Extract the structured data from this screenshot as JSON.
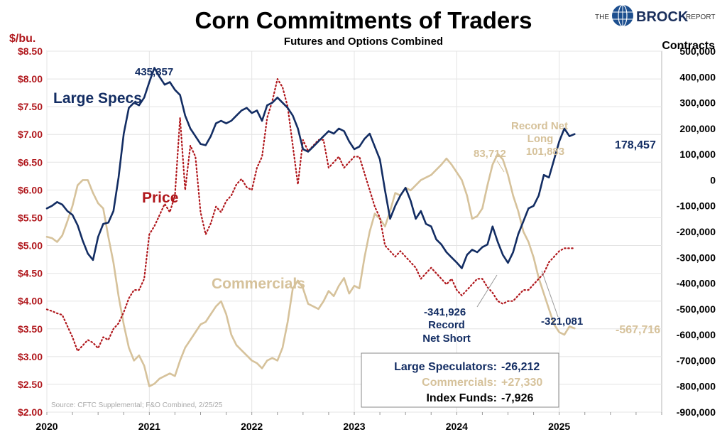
{
  "header": {
    "title": "Corn Commitments of Traders",
    "subtitle": "Futures and Options Combined",
    "logo": {
      "the": "THE",
      "brand": "BROCK",
      "report": "REPORT"
    }
  },
  "colors": {
    "navy": "#132d63",
    "tan": "#d6c29b",
    "red": "#b0171c",
    "grid": "#e4e4e4",
    "source": "#a8a8a8"
  },
  "chart_data": {
    "type": "line",
    "title": "Corn Commitments of Traders",
    "subtitle": "Futures and Options Combined",
    "left_axis": {
      "label": "$/bu.",
      "range": [
        2.0,
        8.5
      ],
      "ticks": [
        "$2.00",
        "$2.50",
        "$3.00",
        "$3.50",
        "$4.00",
        "$4.50",
        "$5.00",
        "$5.50",
        "$6.00",
        "$6.50",
        "$7.00",
        "$7.50",
        "$8.00",
        "$8.50"
      ]
    },
    "right_axis": {
      "label": "Contracts",
      "range": [
        -900000,
        500000
      ],
      "ticks": [
        "-900,000",
        "-800,000",
        "-700,000",
        "-600,000",
        "-500,000",
        "-400,000",
        "-300,000",
        "-200,000",
        "-100,000",
        "0",
        "100,000",
        "200,000",
        "300,000",
        "400,000",
        "500,000"
      ]
    },
    "x_axis": {
      "range": [
        2020.0,
        2026.0
      ],
      "ticks": [
        {
          "x": 2020,
          "label": "2020"
        },
        {
          "x": 2021,
          "label": "2021"
        },
        {
          "x": 2022,
          "label": "2022"
        },
        {
          "x": 2023,
          "label": "2023"
        },
        {
          "x": 2024,
          "label": "2024"
        },
        {
          "x": 2025,
          "label": "2025"
        }
      ]
    },
    "grid": true,
    "series": [
      {
        "name": "Large Specs",
        "axis": "right",
        "style": "solid",
        "colorKey": "navy",
        "x": [
          2020.0,
          2020.05,
          2020.1,
          2020.15,
          2020.2,
          2020.25,
          2020.3,
          2020.35,
          2020.4,
          2020.45,
          2020.5,
          2020.55,
          2020.6,
          2020.65,
          2020.7,
          2020.75,
          2020.8,
          2020.85,
          2020.9,
          2020.95,
          2021.0,
          2021.05,
          2021.1,
          2021.15,
          2021.2,
          2021.25,
          2021.3,
          2021.35,
          2021.4,
          2021.45,
          2021.5,
          2021.55,
          2021.6,
          2021.65,
          2021.7,
          2021.75,
          2021.8,
          2021.85,
          2021.9,
          2021.95,
          2022.0,
          2022.05,
          2022.1,
          2022.15,
          2022.2,
          2022.25,
          2022.3,
          2022.35,
          2022.4,
          2022.45,
          2022.5,
          2022.55,
          2022.6,
          2022.65,
          2022.7,
          2022.75,
          2022.8,
          2022.85,
          2022.9,
          2022.95,
          2023.0,
          2023.05,
          2023.1,
          2023.15,
          2023.2,
          2023.25,
          2023.3,
          2023.35,
          2023.4,
          2023.45,
          2023.5,
          2023.55,
          2023.6,
          2023.65,
          2023.7,
          2023.75,
          2023.8,
          2023.85,
          2023.9,
          2023.95,
          2024.0,
          2024.05,
          2024.1,
          2024.15,
          2024.2,
          2024.25,
          2024.3,
          2024.35,
          2024.4,
          2024.45,
          2024.5,
          2024.55,
          2024.6,
          2024.65,
          2024.7,
          2024.75,
          2024.8,
          2024.85,
          2024.9,
          2024.95,
          2025.0,
          2025.05,
          2025.1,
          2025.15
        ],
        "y": [
          -110000,
          -100000,
          -85000,
          -95000,
          -120000,
          -135000,
          -175000,
          -235000,
          -285000,
          -310000,
          -220000,
          -170000,
          -165000,
          -120000,
          10000,
          180000,
          280000,
          300000,
          290000,
          320000,
          380000,
          435357,
          400000,
          370000,
          380000,
          350000,
          330000,
          250000,
          200000,
          170000,
          140000,
          135000,
          170000,
          220000,
          230000,
          220000,
          230000,
          250000,
          270000,
          280000,
          260000,
          270000,
          230000,
          290000,
          300000,
          320000,
          300000,
          280000,
          250000,
          200000,
          120000,
          110000,
          130000,
          150000,
          170000,
          190000,
          180000,
          200000,
          190000,
          150000,
          120000,
          130000,
          160000,
          180000,
          130000,
          80000,
          -40000,
          -150000,
          -100000,
          -60000,
          -30000,
          -80000,
          -150000,
          -120000,
          -170000,
          -180000,
          -230000,
          -250000,
          -280000,
          -300000,
          -320000,
          -341926,
          -290000,
          -270000,
          -280000,
          -260000,
          -250000,
          -180000,
          -240000,
          -290000,
          -321081,
          -280000,
          -210000,
          -160000,
          -110000,
          -100000,
          -60000,
          20000,
          10000,
          80000,
          150000,
          200000,
          170000,
          178457
        ]
      },
      {
        "name": "Commercials",
        "axis": "right",
        "style": "solid",
        "colorKey": "tan",
        "x": [
          2020.0,
          2020.05,
          2020.1,
          2020.15,
          2020.2,
          2020.25,
          2020.3,
          2020.35,
          2020.4,
          2020.45,
          2020.5,
          2020.55,
          2020.6,
          2020.65,
          2020.7,
          2020.75,
          2020.8,
          2020.85,
          2020.9,
          2020.95,
          2021.0,
          2021.05,
          2021.1,
          2021.15,
          2021.2,
          2021.25,
          2021.3,
          2021.35,
          2021.4,
          2021.45,
          2021.5,
          2021.55,
          2021.6,
          2021.65,
          2021.7,
          2021.75,
          2021.8,
          2021.85,
          2021.9,
          2021.95,
          2022.0,
          2022.05,
          2022.1,
          2022.15,
          2022.2,
          2022.25,
          2022.3,
          2022.35,
          2022.4,
          2022.45,
          2022.5,
          2022.55,
          2022.6,
          2022.65,
          2022.7,
          2022.75,
          2022.8,
          2022.85,
          2022.9,
          2022.95,
          2023.0,
          2023.05,
          2023.1,
          2023.15,
          2023.2,
          2023.25,
          2023.3,
          2023.35,
          2023.4,
          2023.45,
          2023.5,
          2023.55,
          2023.6,
          2023.65,
          2023.7,
          2023.75,
          2023.8,
          2023.85,
          2023.9,
          2023.95,
          2024.0,
          2024.05,
          2024.1,
          2024.15,
          2024.2,
          2024.25,
          2024.3,
          2024.35,
          2024.4,
          2024.45,
          2024.5,
          2024.55,
          2024.6,
          2024.65,
          2024.7,
          2024.75,
          2024.8,
          2024.85,
          2024.9,
          2024.95,
          2025.0,
          2025.05,
          2025.1,
          2025.15
        ],
        "y": [
          -220000,
          -225000,
          -240000,
          -215000,
          -160000,
          -100000,
          -20000,
          0,
          0,
          -50000,
          -90000,
          -110000,
          -220000,
          -320000,
          -450000,
          -560000,
          -650000,
          -700000,
          -680000,
          -720000,
          -800000,
          -790000,
          -770000,
          -760000,
          -750000,
          -760000,
          -700000,
          -650000,
          -620000,
          -590000,
          -560000,
          -550000,
          -520000,
          -490000,
          -470000,
          -520000,
          -600000,
          -640000,
          -660000,
          -680000,
          -700000,
          -710000,
          -730000,
          -700000,
          -690000,
          -700000,
          -650000,
          -550000,
          -420000,
          -390000,
          -420000,
          -480000,
          -490000,
          -500000,
          -470000,
          -430000,
          -450000,
          -410000,
          -380000,
          -440000,
          -410000,
          -420000,
          -300000,
          -200000,
          -130000,
          -150000,
          -180000,
          -120000,
          -50000,
          -60000,
          -30000,
          -40000,
          -20000,
          0,
          10000,
          20000,
          40000,
          60000,
          83712,
          60000,
          30000,
          0,
          -60000,
          -150000,
          -140000,
          -110000,
          -20000,
          60000,
          101883,
          80000,
          20000,
          -60000,
          -120000,
          -200000,
          -240000,
          -300000,
          -380000,
          -440000,
          -500000,
          -560000,
          -590000,
          -600000,
          -567716,
          -575000
        ]
      },
      {
        "name": "Price",
        "axis": "left",
        "style": "dotted",
        "colorKey": "red",
        "x": [
          2020.0,
          2020.05,
          2020.1,
          2020.15,
          2020.2,
          2020.25,
          2020.3,
          2020.35,
          2020.4,
          2020.45,
          2020.5,
          2020.55,
          2020.6,
          2020.65,
          2020.7,
          2020.75,
          2020.8,
          2020.85,
          2020.9,
          2020.95,
          2021.0,
          2021.05,
          2021.1,
          2021.15,
          2021.2,
          2021.25,
          2021.3,
          2021.35,
          2021.4,
          2021.45,
          2021.5,
          2021.55,
          2021.6,
          2021.65,
          2021.7,
          2021.75,
          2021.8,
          2021.85,
          2021.9,
          2021.95,
          2022.0,
          2022.05,
          2022.1,
          2022.15,
          2022.2,
          2022.25,
          2022.3,
          2022.35,
          2022.4,
          2022.45,
          2022.5,
          2022.55,
          2022.6,
          2022.65,
          2022.7,
          2022.75,
          2022.8,
          2022.85,
          2022.9,
          2022.95,
          2023.0,
          2023.05,
          2023.1,
          2023.15,
          2023.2,
          2023.25,
          2023.3,
          2023.35,
          2023.4,
          2023.45,
          2023.5,
          2023.55,
          2023.6,
          2023.65,
          2023.7,
          2023.75,
          2023.8,
          2023.85,
          2023.9,
          2023.95,
          2024.0,
          2024.05,
          2024.1,
          2024.15,
          2024.2,
          2024.25,
          2024.3,
          2024.35,
          2024.4,
          2024.45,
          2024.5,
          2024.55,
          2024.6,
          2024.65,
          2024.7,
          2024.75,
          2024.8,
          2024.85,
          2024.9,
          2024.95,
          2025.0,
          2025.05,
          2025.1,
          2025.15
        ],
        "y": [
          3.85,
          3.82,
          3.78,
          3.75,
          3.55,
          3.35,
          3.1,
          3.2,
          3.3,
          3.25,
          3.15,
          3.35,
          3.3,
          3.5,
          3.6,
          3.8,
          4.05,
          4.2,
          4.2,
          4.4,
          5.2,
          5.35,
          5.55,
          5.75,
          5.6,
          5.9,
          7.3,
          6.0,
          6.8,
          6.6,
          5.6,
          5.2,
          5.4,
          5.7,
          5.6,
          5.8,
          5.9,
          6.1,
          6.2,
          6.05,
          6.0,
          6.4,
          6.6,
          7.3,
          7.6,
          8.0,
          7.85,
          7.5,
          6.8,
          6.1,
          6.9,
          6.7,
          6.8,
          6.9,
          6.9,
          6.4,
          6.5,
          6.6,
          6.4,
          6.5,
          6.6,
          6.6,
          6.3,
          6.0,
          5.7,
          5.5,
          5.0,
          4.9,
          4.8,
          4.9,
          4.8,
          4.7,
          4.6,
          4.4,
          4.5,
          4.6,
          4.5,
          4.4,
          4.3,
          4.4,
          4.2,
          4.1,
          4.2,
          4.3,
          4.4,
          4.4,
          4.25,
          4.15,
          4.0,
          3.95,
          4.0,
          4.0,
          4.1,
          4.2,
          4.2,
          4.3,
          4.4,
          4.5,
          4.7,
          4.8,
          4.9,
          4.95,
          4.95,
          4.95
        ]
      }
    ],
    "annotations": [
      {
        "id": "ann-large-specs",
        "text": "Large Specs",
        "colorKey": "navy",
        "size": 21
      },
      {
        "id": "ann-price",
        "text": "Price",
        "colorKey": "red",
        "size": 21
      },
      {
        "id": "ann-commercials",
        "text": "Commercials",
        "colorKey": "tan",
        "size": 21
      },
      {
        "id": "ann-435357",
        "text": "435,357",
        "colorKey": "navy",
        "size": 15
      },
      {
        "id": "ann-178457",
        "text": "178,457",
        "colorKey": "navy",
        "size": 16
      },
      {
        "id": "ann-83712",
        "text": "83,712",
        "colorKey": "tan",
        "size": 15
      },
      {
        "id": "ann-record-long-1",
        "text": "Record Net",
        "colorKey": "tan",
        "size": 15
      },
      {
        "id": "ann-record-long-2",
        "text": "Long",
        "colorKey": "tan",
        "size": 15
      },
      {
        "id": "ann-record-long-3",
        "text": "101,883",
        "colorKey": "tan",
        "size": 15
      },
      {
        "id": "ann-341926",
        "text": "-341,926",
        "colorKey": "navy",
        "size": 15
      },
      {
        "id": "ann-record-short-1",
        "text": "Record",
        "colorKey": "navy",
        "size": 15
      },
      {
        "id": "ann-record-short-2",
        "text": "Net Short",
        "colorKey": "navy",
        "size": 15
      },
      {
        "id": "ann-321081",
        "text": "-321,081",
        "colorKey": "navy",
        "size": 15
      },
      {
        "id": "ann-567716",
        "text": "-567,716",
        "colorKey": "tan",
        "size": 16
      }
    ],
    "summary": {
      "large_label": "Large Speculators:",
      "large_value": "-26,212",
      "comm_label": "Commercials:",
      "comm_value": "+27,330",
      "index_label": "Index Funds:",
      "index_value": "-7,926"
    },
    "source": "Source: CFTC Supplemental; F&O Combined, 2/25/25"
  }
}
